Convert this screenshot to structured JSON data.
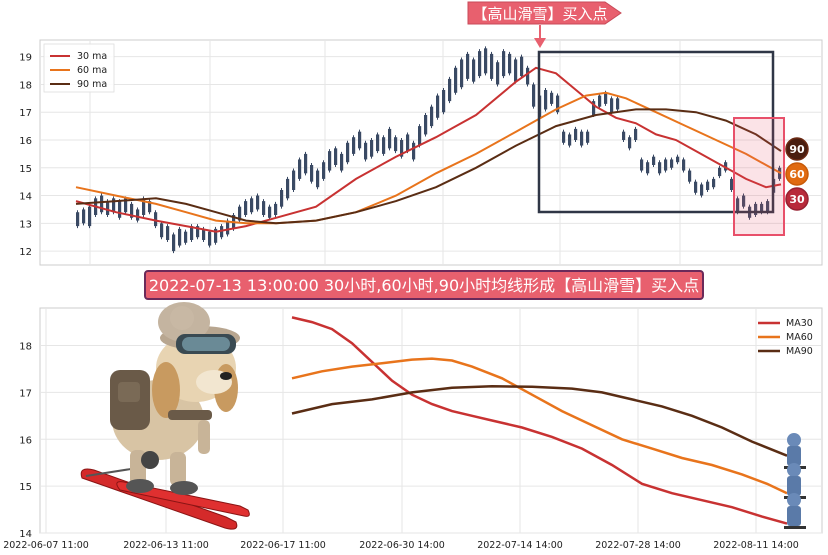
{
  "annotation_banner": "【高山滑雪】买入点",
  "signal_title": "2022-07-13 13:00:00 30小时,60小时,90小时均线形成【高山滑雪】买入点",
  "badges": {
    "ma90": "90",
    "ma60": "60",
    "ma30": "30"
  },
  "colors": {
    "ma30": "#c83232",
    "ma60": "#e8741c",
    "ma90": "#5a2d14",
    "candle": "#3a4a64",
    "banner": "#e8606e",
    "highlight": "#e8506a"
  },
  "chart_data": [
    {
      "type": "line",
      "subtype": "candlestick_with_moving_averages",
      "y_ticks": [
        "12",
        "13",
        "14",
        "15",
        "16",
        "17",
        "18",
        "19"
      ],
      "ylim": [
        11.5,
        19.6
      ],
      "legend_position": "top-left",
      "grid": true,
      "series": [
        {
          "name": "30 ma",
          "key": "ma30",
          "points": [
            [
              0,
              13.8
            ],
            [
              40,
              13.4
            ],
            [
              80,
              13.1
            ],
            [
              110,
              12.9
            ],
            [
              140,
              12.7
            ],
            [
              170,
              12.9
            ],
            [
              200,
              13.2
            ],
            [
              240,
              13.6
            ],
            [
              280,
              14.6
            ],
            [
              320,
              15.4
            ],
            [
              360,
              16.1
            ],
            [
              400,
              16.9
            ],
            [
              440,
              18.1
            ],
            [
              460,
              18.6
            ],
            [
              480,
              18.4
            ],
            [
              500,
              17.8
            ],
            [
              520,
              17.2
            ],
            [
              540,
              16.8
            ],
            [
              560,
              16.6
            ],
            [
              580,
              16.2
            ],
            [
              600,
              16.0
            ],
            [
              620,
              15.6
            ],
            [
              640,
              15.2
            ],
            [
              660,
              14.8
            ],
            [
              670,
              14.6
            ],
            [
              690,
              14.3
            ],
            [
              705,
              14.4
            ]
          ]
        },
        {
          "name": "60 ma",
          "key": "ma60",
          "points": [
            [
              0,
              14.3
            ],
            [
              40,
              14.0
            ],
            [
              80,
              13.7
            ],
            [
              110,
              13.4
            ],
            [
              140,
              13.1
            ],
            [
              170,
              13.0
            ],
            [
              200,
              13.0
            ],
            [
              240,
              13.1
            ],
            [
              280,
              13.4
            ],
            [
              320,
              14.0
            ],
            [
              360,
              14.8
            ],
            [
              400,
              15.5
            ],
            [
              440,
              16.3
            ],
            [
              480,
              17.1
            ],
            [
              510,
              17.6
            ],
            [
              530,
              17.7
            ],
            [
              550,
              17.5
            ],
            [
              580,
              17.0
            ],
            [
              610,
              16.5
            ],
            [
              640,
              16.0
            ],
            [
              670,
              15.5
            ],
            [
              690,
              15.1
            ],
            [
              705,
              14.8
            ]
          ]
        },
        {
          "name": "90 ma",
          "key": "ma90",
          "points": [
            [
              0,
              13.7
            ],
            [
              40,
              13.8
            ],
            [
              80,
              13.9
            ],
            [
              110,
              13.7
            ],
            [
              140,
              13.4
            ],
            [
              170,
              13.1
            ],
            [
              200,
              13.0
            ],
            [
              240,
              13.1
            ],
            [
              280,
              13.4
            ],
            [
              320,
              13.8
            ],
            [
              360,
              14.3
            ],
            [
              400,
              15.0
            ],
            [
              440,
              15.8
            ],
            [
              480,
              16.5
            ],
            [
              520,
              16.9
            ],
            [
              560,
              17.1
            ],
            [
              590,
              17.1
            ],
            [
              620,
              17.0
            ],
            [
              650,
              16.7
            ],
            [
              680,
              16.2
            ],
            [
              705,
              15.6
            ]
          ]
        }
      ],
      "candles": [
        [
          0,
          12.9,
          13.4
        ],
        [
          6,
          13.0,
          13.5
        ],
        [
          12,
          12.9,
          13.6
        ],
        [
          18,
          13.3,
          13.9
        ],
        [
          24,
          13.4,
          14.0
        ],
        [
          30,
          13.3,
          13.8
        ],
        [
          36,
          13.4,
          13.9
        ],
        [
          42,
          13.2,
          13.8
        ],
        [
          48,
          13.4,
          13.9
        ],
        [
          54,
          13.2,
          13.7
        ],
        [
          60,
          13.1,
          13.5
        ],
        [
          66,
          13.3,
          13.9
        ],
        [
          72,
          13.4,
          13.8
        ],
        [
          78,
          12.9,
          13.4
        ],
        [
          84,
          12.5,
          13.0
        ],
        [
          90,
          12.4,
          12.9
        ],
        [
          96,
          12.0,
          12.6
        ],
        [
          102,
          12.2,
          12.8
        ],
        [
          108,
          12.3,
          12.7
        ],
        [
          114,
          12.4,
          12.9
        ],
        [
          120,
          12.5,
          12.9
        ],
        [
          126,
          12.4,
          12.8
        ],
        [
          132,
          12.2,
          12.7
        ],
        [
          138,
          12.3,
          12.8
        ],
        [
          144,
          12.5,
          12.9
        ],
        [
          150,
          12.6,
          13.1
        ],
        [
          156,
          12.8,
          13.3
        ],
        [
          162,
          13.1,
          13.6
        ],
        [
          168,
          13.3,
          13.8
        ],
        [
          174,
          13.4,
          13.9
        ],
        [
          180,
          13.5,
          14.0
        ],
        [
          186,
          13.3,
          13.8
        ],
        [
          192,
          13.2,
          13.6
        ],
        [
          198,
          13.3,
          13.7
        ],
        [
          204,
          13.6,
          14.2
        ],
        [
          210,
          13.9,
          14.6
        ],
        [
          216,
          14.2,
          14.9
        ],
        [
          222,
          14.6,
          15.3
        ],
        [
          228,
          14.8,
          15.5
        ],
        [
          234,
          14.5,
          15.1
        ],
        [
          240,
          14.3,
          14.9
        ],
        [
          246,
          14.6,
          15.2
        ],
        [
          252,
          14.9,
          15.6
        ],
        [
          258,
          15.1,
          15.7
        ],
        [
          264,
          14.9,
          15.5
        ],
        [
          270,
          15.2,
          15.9
        ],
        [
          276,
          15.5,
          16.1
        ],
        [
          282,
          15.7,
          16.3
        ],
        [
          288,
          15.3,
          15.9
        ],
        [
          294,
          15.4,
          16.0
        ],
        [
          300,
          15.6,
          16.2
        ],
        [
          306,
          15.5,
          16.1
        ],
        [
          312,
          15.7,
          16.4
        ],
        [
          318,
          15.6,
          16.1
        ],
        [
          324,
          15.4,
          16.0
        ],
        [
          330,
          15.6,
          16.2
        ],
        [
          336,
          15.3,
          15.9
        ],
        [
          342,
          15.8,
          16.5
        ],
        [
          348,
          16.2,
          16.9
        ],
        [
          354,
          16.5,
          17.2
        ],
        [
          360,
          16.8,
          17.6
        ],
        [
          366,
          17.0,
          17.8
        ],
        [
          372,
          17.4,
          18.2
        ],
        [
          378,
          17.7,
          18.6
        ],
        [
          384,
          17.9,
          18.9
        ],
        [
          390,
          18.2,
          19.1
        ],
        [
          396,
          18.1,
          18.9
        ],
        [
          402,
          18.3,
          19.2
        ],
        [
          408,
          18.4,
          19.3
        ],
        [
          414,
          18.2,
          19.1
        ],
        [
          420,
          18.0,
          18.8
        ],
        [
          426,
          18.3,
          19.2
        ],
        [
          432,
          18.4,
          19.1
        ],
        [
          438,
          18.1,
          18.9
        ],
        [
          444,
          18.3,
          19.0
        ],
        [
          450,
          18.0,
          18.6
        ],
        [
          456,
          17.2,
          18.0
        ],
        [
          462,
          16.8,
          17.6
        ],
        [
          468,
          17.1,
          17.8
        ],
        [
          474,
          17.3,
          17.7
        ],
        [
          480,
          17.0,
          17.6
        ],
        [
          486,
          15.9,
          16.3
        ],
        [
          492,
          15.8,
          16.2
        ],
        [
          498,
          16.0,
          16.4
        ],
        [
          504,
          15.8,
          16.3
        ],
        [
          510,
          15.9,
          16.3
        ],
        [
          516,
          16.9,
          17.4
        ],
        [
          522,
          17.2,
          17.6
        ],
        [
          528,
          17.3,
          17.7
        ],
        [
          534,
          17.0,
          17.5
        ],
        [
          540,
          17.1,
          17.5
        ],
        [
          546,
          16.0,
          16.3
        ],
        [
          552,
          15.7,
          16.1
        ],
        [
          558,
          16.0,
          16.4
        ],
        [
          564,
          14.9,
          15.3
        ],
        [
          570,
          14.8,
          15.2
        ],
        [
          576,
          15.1,
          15.4
        ],
        [
          582,
          14.8,
          15.2
        ],
        [
          588,
          14.9,
          15.3
        ],
        [
          594,
          15.0,
          15.3
        ],
        [
          600,
          15.2,
          15.4
        ],
        [
          606,
          14.9,
          15.3
        ],
        [
          612,
          14.5,
          14.9
        ],
        [
          618,
          14.1,
          14.5
        ],
        [
          624,
          14.0,
          14.4
        ],
        [
          630,
          14.2,
          14.5
        ],
        [
          636,
          14.3,
          14.6
        ],
        [
          642,
          14.7,
          15.0
        ],
        [
          648,
          14.9,
          15.2
        ],
        [
          654,
          14.2,
          14.6
        ],
        [
          660,
          13.4,
          13.9
        ],
        [
          666,
          13.6,
          14.0
        ],
        [
          672,
          13.2,
          13.6
        ],
        [
          678,
          13.3,
          13.7
        ],
        [
          684,
          13.4,
          13.7
        ],
        [
          690,
          13.4,
          13.8
        ],
        [
          696,
          14.1,
          14.6
        ],
        [
          702,
          14.6,
          15.0
        ]
      ]
    },
    {
      "type": "line",
      "x_ticks": [
        "2022-06-07 11:00",
        "2022-06-13 11:00",
        "2022-06-17 11:00",
        "2022-06-30 14:00",
        "2022-07-14 14:00",
        "2022-07-28 14:00",
        "2022-08-11 14:00"
      ],
      "y_ticks": [
        "14",
        "15",
        "16",
        "17",
        "18"
      ],
      "ylim": [
        14.0,
        18.8
      ],
      "legend_position": "top-right",
      "grid": true,
      "series": [
        {
          "name": "MA30",
          "key": "ma30",
          "points": [
            [
              0,
              18.6
            ],
            [
              20,
              18.5
            ],
            [
              40,
              18.35
            ],
            [
              60,
              18.05
            ],
            [
              80,
              17.65
            ],
            [
              100,
              17.25
            ],
            [
              120,
              16.95
            ],
            [
              140,
              16.75
            ],
            [
              160,
              16.6
            ],
            [
              180,
              16.5
            ],
            [
              200,
              16.4
            ],
            [
              230,
              16.25
            ],
            [
              260,
              16.05
            ],
            [
              290,
              15.8
            ],
            [
              320,
              15.45
            ],
            [
              350,
              15.05
            ],
            [
              380,
              14.85
            ],
            [
              410,
              14.7
            ],
            [
              440,
              14.55
            ],
            [
              470,
              14.35
            ],
            [
              495,
              14.2
            ]
          ]
        },
        {
          "name": "MA60",
          "key": "ma60",
          "points": [
            [
              0,
              17.3
            ],
            [
              30,
              17.45
            ],
            [
              60,
              17.55
            ],
            [
              90,
              17.62
            ],
            [
              120,
              17.7
            ],
            [
              140,
              17.72
            ],
            [
              160,
              17.68
            ],
            [
              180,
              17.55
            ],
            [
              210,
              17.3
            ],
            [
              240,
              16.95
            ],
            [
              270,
              16.6
            ],
            [
              300,
              16.3
            ],
            [
              330,
              16.0
            ],
            [
              360,
              15.8
            ],
            [
              390,
              15.6
            ],
            [
              420,
              15.45
            ],
            [
              450,
              15.25
            ],
            [
              475,
              15.05
            ],
            [
              495,
              14.85
            ]
          ]
        },
        {
          "name": "MA90",
          "key": "ma90",
          "points": [
            [
              0,
              16.55
            ],
            [
              40,
              16.75
            ],
            [
              80,
              16.85
            ],
            [
              120,
              17.0
            ],
            [
              160,
              17.1
            ],
            [
              200,
              17.13
            ],
            [
              240,
              17.12
            ],
            [
              280,
              17.08
            ],
            [
              310,
              17.0
            ],
            [
              340,
              16.85
            ],
            [
              370,
              16.7
            ],
            [
              400,
              16.5
            ],
            [
              430,
              16.25
            ],
            [
              460,
              15.95
            ],
            [
              495,
              15.65
            ]
          ]
        }
      ]
    }
  ]
}
